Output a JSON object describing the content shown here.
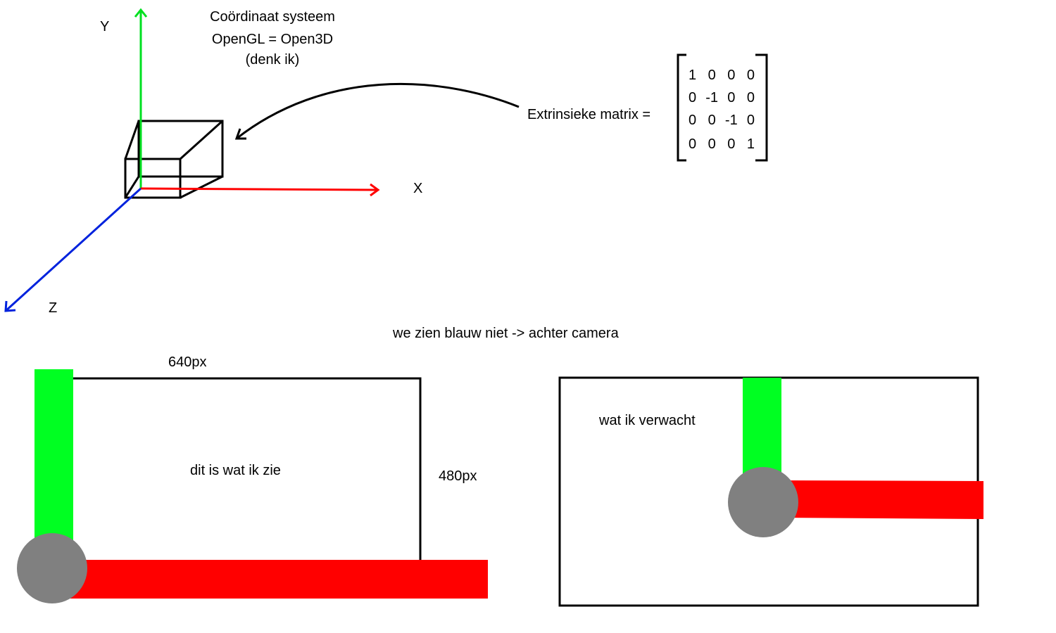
{
  "title": {
    "line1": "Coördinaat systeem",
    "line2": "OpenGL = Open3D",
    "line3": "(denk ik)"
  },
  "axes": {
    "y_label": "Y",
    "x_label": "X",
    "z_label": "Z",
    "x_color": "#ff0000",
    "y_color": "#00e020",
    "z_color": "#0022dd"
  },
  "extrinsic": {
    "label": "Extrinsieke matrix =",
    "matrix": [
      [
        "1",
        "0",
        "0",
        "0"
      ],
      [
        "0",
        "-1",
        "0",
        "0"
      ],
      [
        "0",
        "0",
        "-1",
        "0"
      ],
      [
        "0",
        "0",
        "0",
        "1"
      ]
    ]
  },
  "note": "we zien blauw niet -> achter camera",
  "left_view": {
    "width_label": "640px",
    "height_label": "480px",
    "caption": "dit is wat ik zie"
  },
  "right_view": {
    "caption": "wat ik verwacht"
  },
  "colors": {
    "green_bar": "#00ff22",
    "red_bar": "#ff0000",
    "origin_circle": "#808080"
  }
}
